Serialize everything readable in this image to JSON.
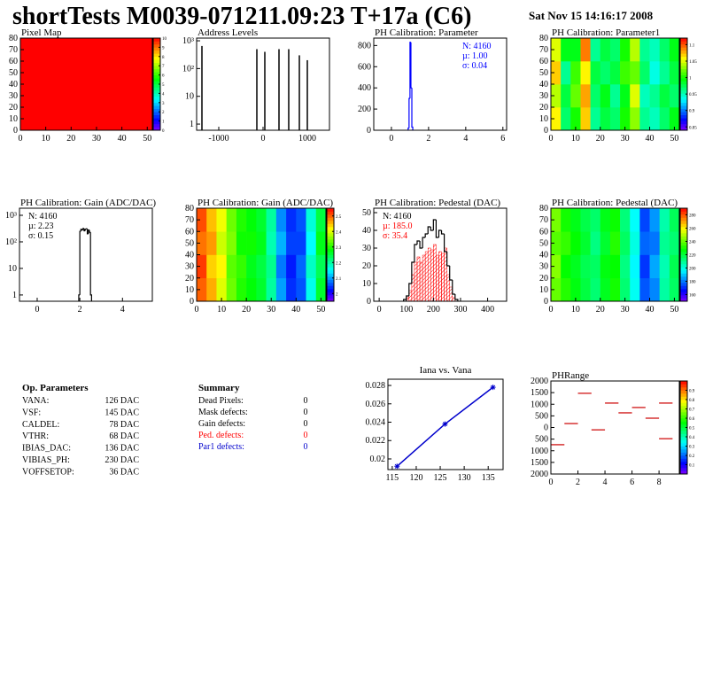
{
  "header": {
    "title": "shortTests M0039-071211.09:23 T+17a (C6)",
    "date": "Sat Nov 15 14:16:17 2008"
  },
  "chart_data": [
    {
      "type": "heatmap",
      "title": "Pixel Map",
      "xlim": [
        0,
        52
      ],
      "ylim": [
        0,
        80
      ],
      "xticks": [
        0,
        10,
        20,
        30,
        40,
        50
      ],
      "yticks": [
        0,
        10,
        20,
        30,
        40,
        50,
        60,
        70,
        80
      ],
      "zlim": [
        0,
        10
      ],
      "zticks": [
        0,
        1,
        2,
        3,
        4,
        5,
        6,
        7,
        8,
        9,
        10
      ],
      "z": [
        [
          10
        ]
      ]
    },
    {
      "type": "spikes",
      "title": "Address Levels",
      "log_y": true,
      "xlim": [
        -1500,
        1500
      ],
      "ylim": [
        0.6,
        1250
      ],
      "xticks": [
        -1000,
        0,
        1000
      ],
      "yticks": [
        1,
        10,
        {
          "value": 100,
          "label": "10²"
        },
        {
          "value": 1000,
          "label": "10³"
        }
      ],
      "color": "#000000",
      "x": [
        -1380,
        -140,
        40,
        360,
        580,
        820,
        1000
      ],
      "values": [
        650,
        500,
        400,
        500,
        500,
        300,
        200
      ]
    },
    {
      "type": "histogram",
      "title": "PH Calibration: Parameter",
      "xlim": [
        -0.95,
        6.2
      ],
      "ylim": [
        0,
        870
      ],
      "xticks": [
        0,
        2,
        4,
        6
      ],
      "yticks": [
        0,
        200,
        400,
        600,
        800
      ],
      "bins": [
        0.9,
        0.95,
        1.0,
        1.05,
        1.1,
        1.15
      ],
      "series": [
        {
          "color": "#0000ff",
          "values": [
            20,
            300,
            830,
            400,
            30
          ]
        }
      ],
      "stats": [
        {
          "text": "N: 4160",
          "color": "#0000ff"
        },
        {
          "text": "µ: 1.00",
          "color": "#0000ff"
        },
        {
          "text": "σ: 0.04",
          "color": "#0000ff"
        }
      ],
      "stats_corner": "right"
    },
    {
      "type": "heatmap",
      "title": "PH Calibration: Parameter1",
      "xlim": [
        0,
        52
      ],
      "ylim": [
        0,
        80
      ],
      "xticks": [
        0,
        10,
        20,
        30,
        40,
        50
      ],
      "yticks": [
        0,
        10,
        20,
        30,
        40,
        50,
        60,
        70,
        80
      ],
      "zlim": [
        0.84,
        1.12
      ],
      "zticks": [
        0.85,
        0.9,
        0.95,
        1,
        1.05,
        1.1
      ],
      "z": [
        [
          1.06,
          0.97,
          1.0,
          1.07,
          0.96,
          0.98,
          0.97,
          1.0,
          1.03,
          0.96,
          0.95,
          0.97,
          0.99
        ],
        [
          1.04,
          0.98,
          1.02,
          1.08,
          0.97,
          0.99,
          0.96,
          0.99,
          1.05,
          0.95,
          0.96,
          0.98,
          0.97
        ],
        [
          1.07,
          0.96,
          1.01,
          1.06,
          0.98,
          0.97,
          0.98,
          1.01,
          1.02,
          0.97,
          0.94,
          0.96,
          0.98
        ],
        [
          1.05,
          0.99,
          0.99,
          1.09,
          0.96,
          0.98,
          0.97,
          1.0,
          1.04,
          0.96,
          0.95,
          0.97,
          0.99
        ]
      ]
    },
    {
      "type": "histogram",
      "title": "PH Calibration: Gain (ADC/DAC)",
      "log_y": true,
      "xlim": [
        -0.83,
        5.4
      ],
      "ylim": [
        0.58,
        1850
      ],
      "xticks": [
        0,
        2,
        4
      ],
      "yticks": [
        1,
        10,
        {
          "value": 100,
          "label": "10²"
        },
        {
          "value": 1000,
          "label": "10³"
        }
      ],
      "bins": [
        1.95,
        2.0,
        2.05,
        2.1,
        2.15,
        2.2,
        2.25,
        2.3,
        2.35,
        2.4,
        2.45,
        2.5,
        2.55
      ],
      "series": [
        {
          "color": "#000000",
          "values": [
            1,
            250,
            300,
            280,
            320,
            260,
            300,
            310,
            200,
            280,
            230,
            1
          ]
        }
      ],
      "stats": [
        {
          "text": "N: 4160",
          "color": "#000000"
        },
        {
          "text": "µ: 2.23",
          "color": "#000000"
        },
        {
          "text": "σ: 0.15",
          "color": "#000000"
        }
      ],
      "stats_corner": "left"
    },
    {
      "type": "heatmap",
      "title": "PH Calibration: Gain (ADC/DAC)",
      "xlim": [
        0,
        52
      ],
      "ylim": [
        0,
        80
      ],
      "xticks": [
        0,
        10,
        20,
        30,
        40,
        50
      ],
      "yticks": [
        0,
        10,
        20,
        30,
        40,
        50,
        60,
        70,
        80
      ],
      "zlim": [
        1.95,
        2.55
      ],
      "zticks": [
        2,
        2.1,
        2.2,
        2.3,
        2.4,
        2.5
      ],
      "z": [
        [
          2.5,
          2.46,
          2.4,
          2.34,
          2.3,
          2.28,
          2.26,
          2.2,
          2.1,
          2.04,
          2.06,
          2.16,
          2.26
        ],
        [
          2.52,
          2.44,
          2.42,
          2.33,
          2.31,
          2.27,
          2.25,
          2.21,
          2.08,
          2.03,
          2.07,
          2.18,
          2.24
        ],
        [
          2.49,
          2.47,
          2.39,
          2.35,
          2.29,
          2.29,
          2.27,
          2.19,
          2.11,
          2.05,
          2.05,
          2.15,
          2.27
        ],
        [
          2.51,
          2.45,
          2.41,
          2.34,
          2.3,
          2.28,
          2.26,
          2.2,
          2.09,
          2.04,
          2.06,
          2.17,
          2.25
        ]
      ]
    },
    {
      "type": "histogram",
      "title": "PH Calibration: Pedestal (DAC)",
      "xlim": [
        -20,
        470
      ],
      "ylim": [
        0,
        52.5
      ],
      "xticks": [
        0,
        100,
        200,
        300,
        400
      ],
      "yticks": [
        0,
        10,
        20,
        30,
        40,
        50
      ],
      "bins": [
        90,
        100,
        110,
        120,
        130,
        140,
        150,
        160,
        170,
        180,
        190,
        200,
        210,
        220,
        230,
        240,
        250,
        260,
        270,
        280,
        290
      ],
      "series": [
        {
          "color": "#000000",
          "values": [
            1,
            3,
            10,
            22,
            32,
            34,
            30,
            36,
            38,
            42,
            40,
            46,
            36,
            40,
            38,
            28,
            20,
            12,
            4,
            1
          ]
        },
        {
          "color": "#ff0000",
          "fill": "hatch",
          "values": [
            0,
            2,
            6,
            15,
            22,
            25,
            22,
            26,
            28,
            30,
            29,
            32,
            26,
            28,
            27,
            30,
            15,
            8,
            2,
            0
          ]
        }
      ],
      "stats": [
        {
          "text": "N: 4160",
          "color": "#000000"
        },
        {
          "text": "µ: 185.0",
          "color": "#ff0000"
        },
        {
          "text": "σ: 35.4",
          "color": "#ff0000"
        }
      ],
      "stats_corner": "left"
    },
    {
      "type": "heatmap",
      "title": "PH Calibration: Pedestal (DAC)",
      "xlim": [
        0,
        52
      ],
      "ylim": [
        0,
        80
      ],
      "xticks": [
        0,
        10,
        20,
        30,
        40,
        50
      ],
      "yticks": [
        0,
        10,
        20,
        30,
        40,
        50,
        60,
        70,
        80
      ],
      "zlim": [
        150,
        290
      ],
      "zticks": [
        160,
        180,
        200,
        220,
        240,
        260,
        280
      ],
      "z": [
        [
          240,
          232,
          226,
          220,
          214,
          224,
          230,
          214,
          198,
          176,
          182,
          208,
          216
        ],
        [
          244,
          228,
          224,
          218,
          216,
          226,
          228,
          212,
          196,
          172,
          186,
          206,
          218
        ],
        [
          238,
          234,
          228,
          222,
          212,
          222,
          232,
          216,
          200,
          178,
          180,
          210,
          214
        ],
        [
          242,
          230,
          225,
          219,
          215,
          225,
          229,
          213,
          197,
          174,
          184,
          207,
          217
        ]
      ]
    },
    {
      "type": "line",
      "title": "Iana vs. Vana",
      "xlim": [
        114.1,
        138.1
      ],
      "ylim": [
        0.01884,
        0.02868
      ],
      "xticks": [
        115,
        120,
        125,
        130,
        135
      ],
      "yticks": [
        0.02,
        0.022,
        0.024,
        0.026,
        0.028
      ],
      "color": "#0000cc",
      "x": [
        116,
        126,
        136
      ],
      "values": [
        0.0192,
        0.0238,
        0.0278
      ]
    },
    {
      "type": "segments",
      "title": "PHRange",
      "xlim": [
        0,
        9.5
      ],
      "ylim": [
        -2000,
        2000
      ],
      "xticks": [
        0,
        2,
        4,
        6,
        8
      ],
      "yticks": [
        2000,
        1500,
        1000,
        500,
        0,
        {
          "value": -500,
          "label": "500"
        },
        {
          "value": -1000,
          "label": "1000"
        },
        {
          "value": -1500,
          "label": "1500"
        },
        {
          "value": -2000,
          "label": "2000"
        }
      ],
      "zlim": [
        0,
        1
      ],
      "zticks": [
        0.1,
        0.2,
        0.3,
        0.4,
        0.5,
        0.6,
        0.7,
        0.8,
        0.9
      ],
      "color": "#cc0000",
      "x": [
        0.5,
        1.5,
        2.5,
        3.5,
        4.5,
        5.5,
        6.5,
        7.5,
        8.5,
        8.5
      ],
      "values": [
        -740,
        170,
        1470,
        -100,
        1050,
        630,
        860,
        400,
        1050,
        -480
      ]
    }
  ],
  "op_parameters": {
    "title": "Op. Parameters",
    "rows": [
      {
        "label": "VANA:",
        "value": "126 DAC"
      },
      {
        "label": "VSF:",
        "value": "145 DAC"
      },
      {
        "label": "CALDEL:",
        "value": "78 DAC"
      },
      {
        "label": "VTHR:",
        "value": "68 DAC"
      },
      {
        "label": "IBIAS_DAC:",
        "value": "136 DAC"
      },
      {
        "label": "VIBIAS_PH:",
        "value": "230 DAC"
      },
      {
        "label": "VOFFSETOP:",
        "value": "36 DAC"
      }
    ]
  },
  "summary": {
    "title": "Summary",
    "rows": [
      {
        "label": "Dead Pixels:",
        "value": 0,
        "color": "#000000"
      },
      {
        "label": "Mask defects:",
        "value": 0,
        "color": "#000000"
      },
      {
        "label": "Gain defects:",
        "value": 0,
        "color": "#000000"
      },
      {
        "label": "Ped. defects:",
        "value": 0,
        "color": "#ff0000"
      },
      {
        "label": "Par1 defects:",
        "value": 0,
        "color": "#0000cc"
      }
    ]
  }
}
